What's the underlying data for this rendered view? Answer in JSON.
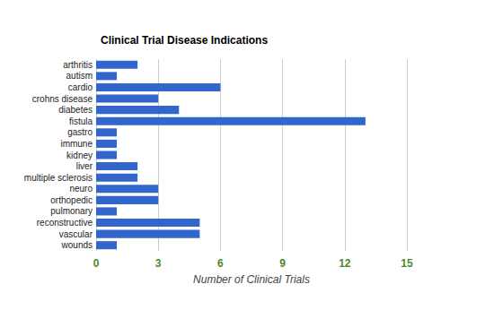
{
  "chart_data": {
    "type": "bar",
    "title": "Clinical Trial Disease Indications",
    "orientation": "horizontal",
    "categories": [
      "arthritis",
      "autism",
      "cardio",
      "crohns disease",
      "diabetes",
      "fistula",
      "gastro",
      "immune",
      "kidney",
      "liver",
      "multiple sclerosis",
      "neuro",
      "orthopedic",
      "pulmonary",
      "reconstructive",
      "vascular",
      "wounds"
    ],
    "values": [
      2,
      1,
      6,
      3,
      4,
      13,
      1,
      1,
      1,
      2,
      2,
      3,
      3,
      1,
      5,
      5,
      1
    ],
    "color": "#3366cc",
    "xlabel": "Number of Clinical Trials",
    "xlim": [
      0,
      15
    ],
    "xticks": [
      0,
      3,
      6,
      9,
      12,
      15
    ],
    "grid": true
  }
}
